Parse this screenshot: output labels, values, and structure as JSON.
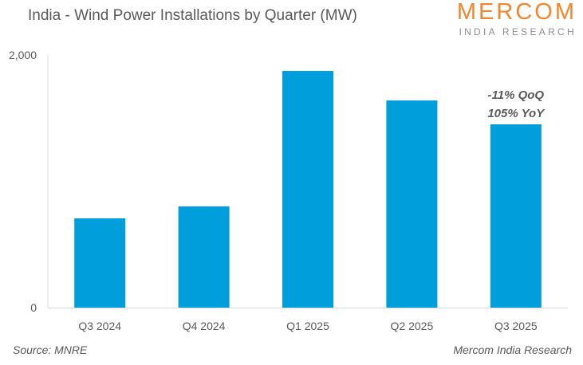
{
  "header": {
    "title": "India - Wind Power Installations by Quarter (MW)",
    "logo_main": "MERCOM",
    "logo_sub": "INDIA RESEARCH"
  },
  "footer": {
    "source": "Source: MNRE",
    "credit": "Mercom India Research"
  },
  "colors": {
    "bar": "#009FDB",
    "logo": "#F0862F",
    "text": "#595959"
  },
  "chart_data": {
    "type": "bar",
    "title": "India - Wind Power Installations by Quarter (MW)",
    "xlabel": "",
    "ylabel": "MW",
    "categories": [
      "Q3 2024",
      "Q4 2024",
      "Q1 2025",
      "Q2 2025",
      "Q3 2025"
    ],
    "values": [
      707,
      801,
      1874,
      1640,
      1451
    ],
    "ylim": [
      0,
      2000
    ],
    "yticks": [
      0,
      2000
    ],
    "ytick_labels": [
      "0",
      "2,000"
    ],
    "grid": false,
    "annotations": [
      {
        "category": "Q3 2025",
        "lines": [
          "-11% QoQ",
          "105% YoY"
        ]
      }
    ]
  }
}
